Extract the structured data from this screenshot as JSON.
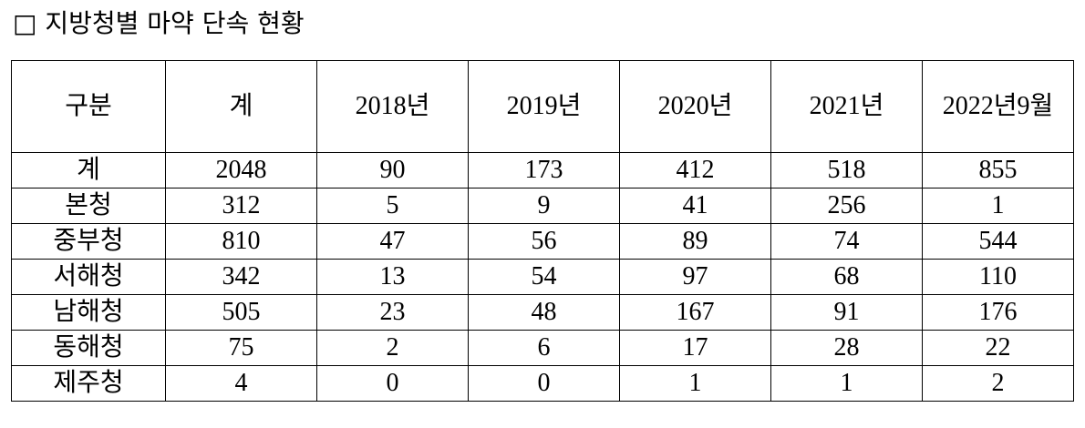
{
  "title": "□ 지방청별 마약 단속 현황",
  "table": {
    "header": [
      "구분",
      "계",
      "2018년",
      "2019년",
      "2020년",
      "2021년",
      "2022년9월"
    ],
    "rows": [
      [
        "계",
        2048,
        90,
        173,
        412,
        518,
        855
      ],
      [
        "본청",
        312,
        5,
        9,
        41,
        256,
        1
      ],
      [
        "중부청",
        810,
        47,
        56,
        89,
        74,
        544
      ],
      [
        "서해청",
        342,
        13,
        54,
        97,
        68,
        110
      ],
      [
        "남해청",
        505,
        23,
        48,
        167,
        91,
        176
      ],
      [
        "동해청",
        75,
        2,
        6,
        17,
        28,
        22
      ],
      [
        "제주청",
        4,
        0,
        0,
        1,
        1,
        2
      ]
    ]
  }
}
